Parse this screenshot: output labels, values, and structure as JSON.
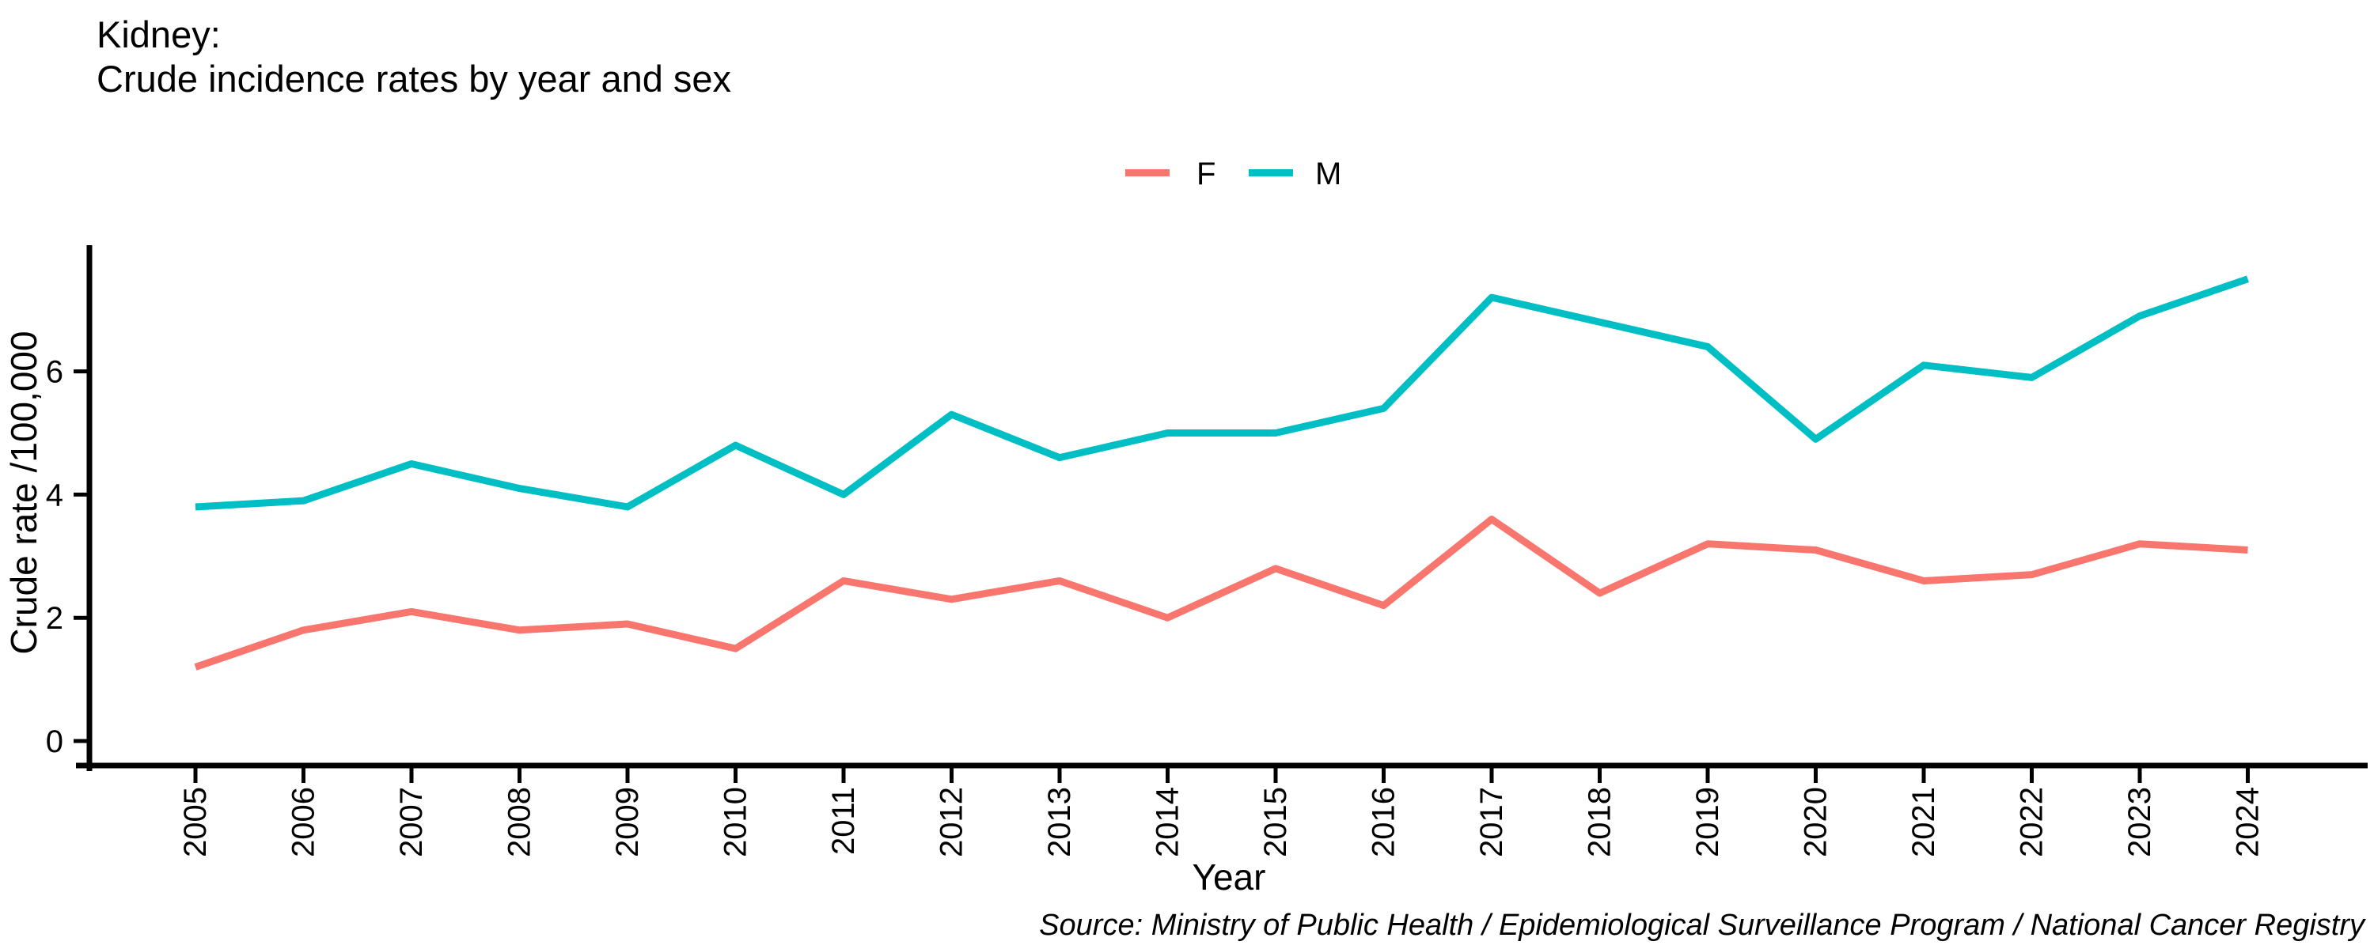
{
  "title": {
    "line1": "Kidney:",
    "line2": "Crude incidence rates by year and sex"
  },
  "legend": {
    "items": [
      {
        "label": "F",
        "color": "#F8766D"
      },
      {
        "label": "M",
        "color": "#00BFC4"
      }
    ]
  },
  "axes": {
    "x_label": "Year",
    "y_label": "Crude rate /100,000",
    "y_tick_labels": [
      "0",
      "2",
      "4",
      "6"
    ]
  },
  "source": "Source: Ministry of Public Health / Epidemiological Surveillance Program / National Cancer Registry",
  "chart_data": {
    "type": "line",
    "title": "Kidney: Crude incidence rates by year and sex",
    "x": [
      2005,
      2006,
      2007,
      2008,
      2009,
      2010,
      2011,
      2012,
      2013,
      2014,
      2015,
      2016,
      2017,
      2018,
      2019,
      2020,
      2021,
      2022,
      2023,
      2024
    ],
    "series": [
      {
        "name": "F",
        "color": "#F8766D",
        "values": [
          1.2,
          1.8,
          2.1,
          1.8,
          1.9,
          1.5,
          2.6,
          2.3,
          2.6,
          2.0,
          2.8,
          2.2,
          3.6,
          2.4,
          3.2,
          3.1,
          2.6,
          2.7,
          3.2,
          3.1
        ]
      },
      {
        "name": "M",
        "color": "#00BFC4",
        "values": [
          3.8,
          3.9,
          4.5,
          4.1,
          3.8,
          4.8,
          4.0,
          5.3,
          4.6,
          5.0,
          5.0,
          5.4,
          7.2,
          6.8,
          6.4,
          4.9,
          6.1,
          5.9,
          6.9,
          7.5
        ]
      }
    ],
    "xlabel": "Year",
    "ylabel": "Crude rate /100,000",
    "ylim": [
      0,
      8
    ],
    "yticks": [
      0,
      2,
      4,
      6
    ],
    "grid": false,
    "legend_position": "top-center"
  }
}
